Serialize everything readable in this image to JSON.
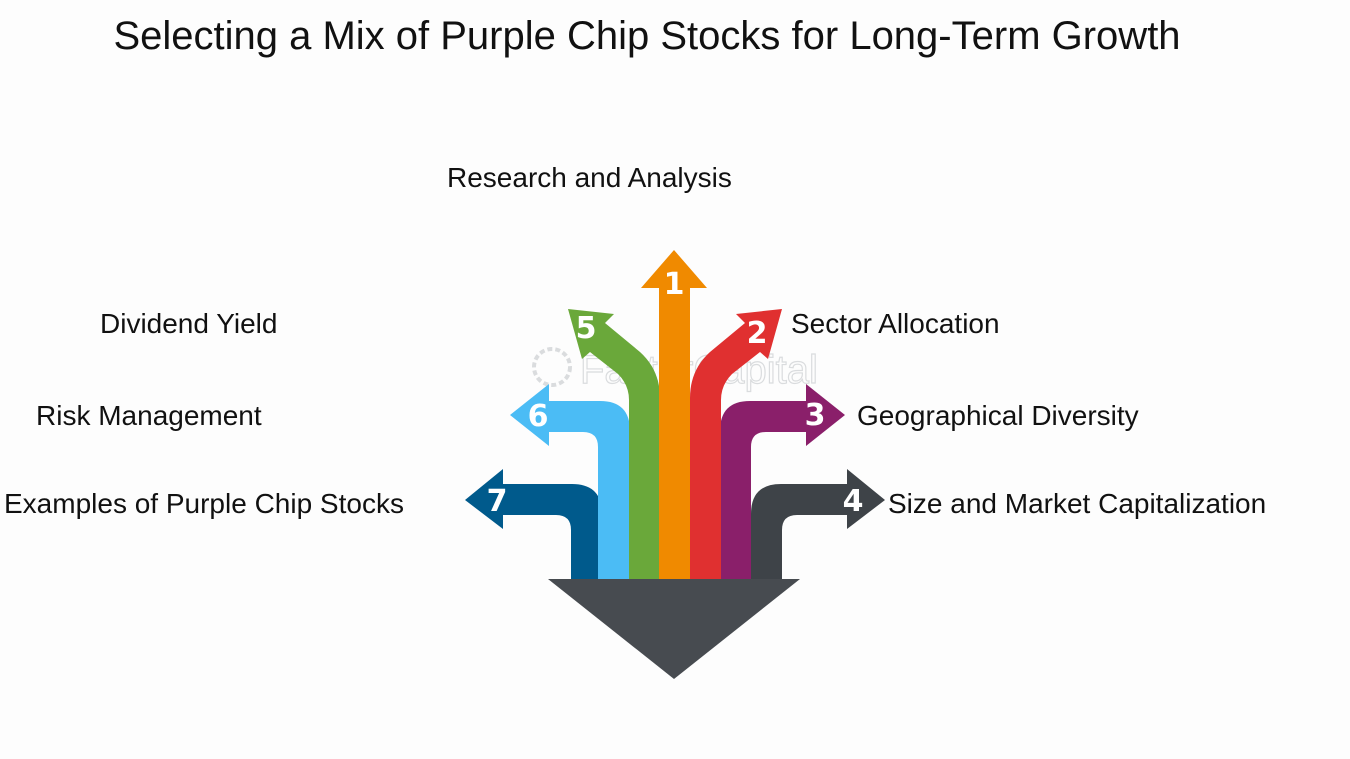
{
  "title": "Selecting a Mix of Purple Chip Stocks for Long-Term Growth",
  "watermark": "FasterCapital",
  "steps": [
    {
      "number": "1",
      "label": "Research and Analysis",
      "color": "#f08a00",
      "icon": "up-arrow-icon"
    },
    {
      "number": "2",
      "label": "Sector Allocation",
      "color": "#e03030",
      "icon": "up-right-arrow-icon"
    },
    {
      "number": "3",
      "label": "Geographical Diversity",
      "color": "#8a1f6a",
      "icon": "right-arrow-icon"
    },
    {
      "number": "4",
      "label": "Size and Market Capitalization",
      "color": "#3e4348",
      "icon": "right-arrow-icon"
    },
    {
      "number": "5",
      "label": "Dividend Yield",
      "color": "#6aa83a",
      "icon": "up-left-arrow-icon"
    },
    {
      "number": "6",
      "label": "Risk Management",
      "color": "#4bbcf5",
      "icon": "left-arrow-icon"
    },
    {
      "number": "7",
      "label": "Examples of Purple Chip Stocks",
      "color": "#005a8c",
      "icon": "left-arrow-icon"
    }
  ],
  "base_color": "#474b50"
}
